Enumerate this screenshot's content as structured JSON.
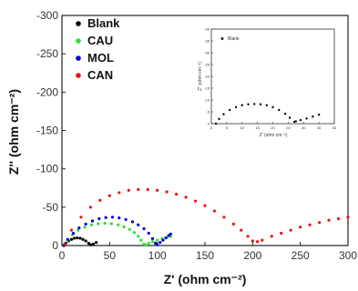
{
  "chart_data": [
    {
      "type": "scatter",
      "title": "",
      "xlabel": "Z' (ohm cm⁻²)",
      "ylabel": "Z'' (ohm cm⁻²)",
      "xlim": [
        0,
        300
      ],
      "ylim": [
        0,
        -300
      ],
      "x_ticks": [
        0,
        50,
        100,
        150,
        200,
        250,
        300
      ],
      "y_ticks": [
        -300,
        -250,
        -200,
        -150,
        -100,
        -50,
        0
      ],
      "x_tick_labels": [
        "0",
        "50",
        "100",
        "150",
        "200",
        "250",
        "300"
      ],
      "y_tick_labels": [
        "-300",
        "-250",
        "-200",
        "-150",
        "-100",
        "-50",
        "0"
      ],
      "legend_placement": "top-left",
      "grid": false,
      "series": [
        {
          "name": "Blank",
          "color": "#000000",
          "x": [
            2,
            4,
            7,
            10,
            13,
            16,
            19,
            22,
            25,
            28,
            30,
            33,
            36
          ],
          "y": [
            0,
            -3,
            -6,
            -8,
            -9.5,
            -10,
            -9.5,
            -8,
            -6,
            -3,
            -1,
            -2,
            -4
          ]
        },
        {
          "name": "CAU",
          "color": "#33dd33",
          "x": [
            2,
            6,
            11,
            17,
            24,
            31,
            38,
            45,
            52,
            59,
            65,
            71,
            76,
            80,
            83,
            86,
            88,
            91,
            95,
            100,
            105,
            110,
            114
          ],
          "y": [
            0,
            -7,
            -14,
            -20,
            -24,
            -27,
            -28.5,
            -29,
            -28.5,
            -27,
            -24.5,
            -21,
            -17,
            -12,
            -7,
            -2,
            -0.5,
            -3,
            -5,
            -7,
            -9,
            -10.5,
            -12
          ]
        },
        {
          "name": "MOL",
          "color": "#0000dd",
          "x": [
            2,
            6,
            12,
            18,
            25,
            32,
            39,
            46,
            53,
            60,
            67,
            74,
            80,
            86,
            91,
            95,
            98,
            100,
            103,
            106,
            109,
            112,
            114
          ],
          "y": [
            0,
            -8,
            -16,
            -23,
            -28,
            -32,
            -35,
            -36.5,
            -37,
            -36,
            -34,
            -31,
            -27,
            -22,
            -16,
            -9,
            -3,
            -1,
            -4,
            -7,
            -10,
            -13,
            -15
          ]
        },
        {
          "name": "CAN",
          "color": "#ee1111",
          "x": [
            3,
            10,
            20,
            30,
            40,
            50,
            60,
            70,
            80,
            90,
            100,
            110,
            120,
            130,
            140,
            150,
            160,
            170,
            180,
            188,
            195,
            200,
            205,
            210,
            220,
            230,
            240,
            250,
            260,
            270,
            280,
            290,
            300
          ],
          "y": [
            -2,
            -20,
            -37,
            -50,
            -59,
            -65,
            -69,
            -72,
            -73,
            -73,
            -72,
            -70,
            -67,
            -63,
            -58,
            -52,
            -45,
            -37,
            -28,
            -20,
            -12,
            -6,
            -5,
            -7,
            -12,
            -16,
            -20,
            -24,
            -27,
            -30,
            -33,
            -35,
            -37
          ]
        }
      ]
    },
    {
      "type": "scatter",
      "title": "",
      "xlabel": "Z' (ohm cm⁻²)",
      "ylabel": "Z'' (ohm cm⁻²)",
      "xlim": [
        0,
        40
      ],
      "ylim": [
        0,
        -40
      ],
      "x_ticks": [
        0,
        5,
        10,
        15,
        20,
        25,
        30,
        35,
        40
      ],
      "y_ticks": [
        -40,
        -35,
        -30,
        -25,
        -20,
        -15,
        -10,
        -5,
        0
      ],
      "x_tick_labels": [
        "0",
        "5",
        "10",
        "15",
        "20",
        "25",
        "30",
        "35",
        "40"
      ],
      "y_tick_labels": [
        "-40",
        "-35",
        "-30",
        "-25",
        "-20",
        "-15",
        "-10",
        "-5",
        "0"
      ],
      "legend_placement": "top-left",
      "series": [
        {
          "name": "Blank",
          "color": "#000000",
          "x": [
            1.5,
            2.5,
            4,
            6,
            8,
            10,
            12,
            14,
            16,
            18,
            20,
            22,
            24,
            25.5,
            27,
            27.5,
            29,
            31,
            33,
            35
          ],
          "y": [
            0,
            -2,
            -4,
            -5.8,
            -7,
            -7.8,
            -8.2,
            -8.3,
            -8.2,
            -7.8,
            -7,
            -5.8,
            -4.2,
            -2.5,
            -0.8,
            -1,
            -1.5,
            -2.2,
            -3,
            -3.8
          ]
        }
      ]
    }
  ]
}
